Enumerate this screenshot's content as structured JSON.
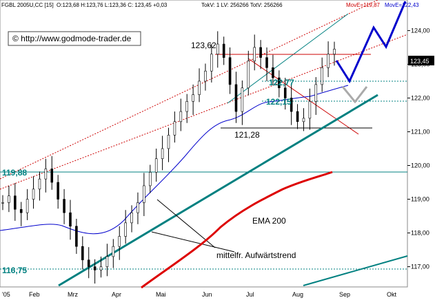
{
  "header": {
    "symbol": "FGBL 2005U,CC [15]",
    "ohlc": "O:123,68 H:123,76 L:123,36 C: 123,45 +0,03",
    "volumes": "TokV: 1 LV: 256266 TotV: 256266",
    "move1": "MovE=119,87",
    "move2": "MovE=122,43"
  },
  "watermark": "© http://www.godmode-trader.de",
  "annotations": {
    "high": "123,62",
    "low": "121,28",
    "level_a": "122,77",
    "level_b": "122,15",
    "level_c": "119,88",
    "level_d": "116,75",
    "ema": "EMA 200",
    "trend": "mittelfr. Aufwärtstrend",
    "last_price": "123,45"
  },
  "chart_data": {
    "type": "candlestick",
    "title": "FGBL 2005U,CC [15]",
    "x_ticks": [
      "'05",
      "Feb",
      "Mrz",
      "Apr",
      "Mai",
      "Jun",
      "Jul",
      "Aug",
      "Sep",
      "Okt"
    ],
    "y_ticks": [
      "124,00",
      "123,00",
      "122,00",
      "121,00",
      "120,00",
      "119,00",
      "118,00",
      "117,00"
    ],
    "ylim": [
      116.4,
      124.6
    ],
    "horizontal_levels": [
      123.62,
      122.77,
      122.15,
      121.28,
      119.88,
      116.75
    ],
    "close_series": [
      118.9,
      119.1,
      118.7,
      118.6,
      119.0,
      119.3,
      119.6,
      119.9,
      119.5,
      119.0,
      118.6,
      118.2,
      117.6,
      117.2,
      117.0,
      116.9,
      117.0,
      117.3,
      117.6,
      117.9,
      118.3,
      118.6,
      118.9,
      119.4,
      119.8,
      120.2,
      120.5,
      120.9,
      121.3,
      121.6,
      121.9,
      122.1,
      122.5,
      122.8,
      123.3,
      123.6,
      123.2,
      122.4,
      121.6,
      122.3,
      123.1,
      123.5,
      123.2,
      122.9,
      122.6,
      122.3,
      122.0,
      121.6,
      121.3,
      121.4,
      121.9,
      122.4,
      122.9,
      123.3,
      123.45
    ],
    "series": [
      {
        "name": "EMA 200",
        "color": "#dd0000",
        "values": [
          117.0,
          117.3,
          117.7,
          118.1,
          118.5,
          118.8,
          119.1,
          119.4,
          119.7,
          119.87
        ]
      }
    ],
    "colors": {
      "candles": "#000000",
      "ema200": "#dd0000",
      "ema_short": "#0000cc",
      "trend": "#008080",
      "forecast": "#0000cc",
      "channel": "#cc0000"
    }
  }
}
